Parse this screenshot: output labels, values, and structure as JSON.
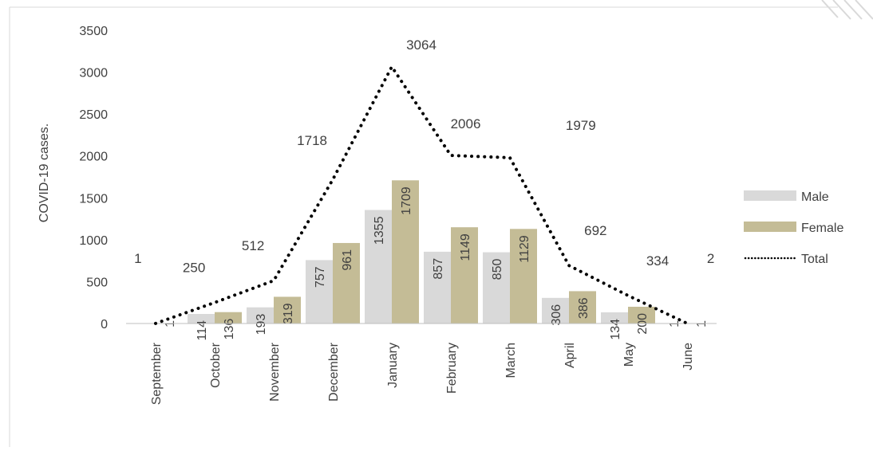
{
  "chart_data": {
    "type": "bar",
    "categories": [
      "September",
      "October",
      "November",
      "December",
      "January",
      "February",
      "March",
      "April",
      "May",
      "June"
    ],
    "series": [
      {
        "name": "Male",
        "type": "bar",
        "values": [
          0,
          114,
          193,
          757,
          1355,
          857,
          850,
          306,
          134,
          1
        ],
        "labels": [
          "",
          "114",
          "193",
          "757",
          "1355",
          "857",
          "850",
          "306",
          "134",
          "1"
        ],
        "color": "#d9d9d9"
      },
      {
        "name": "Female",
        "type": "bar",
        "values": [
          1,
          136,
          319,
          961,
          1709,
          1149,
          1129,
          386,
          200,
          1
        ],
        "labels": [
          "1",
          "136",
          "319",
          "961",
          "1709",
          "1149",
          "1129",
          "386",
          "200",
          "1"
        ],
        "color": "#c4bc96"
      },
      {
        "name": "Total",
        "type": "line",
        "style": "dotted",
        "values": [
          1,
          250,
          512,
          1718,
          3064,
          2006,
          1979,
          692,
          334,
          2
        ],
        "labels": [
          "1",
          "250",
          "512",
          "1718",
          "3064",
          "2006",
          "1979",
          "692",
          "334",
          "2"
        ],
        "color": "#000000"
      }
    ],
    "ylabel": "COVID-19 cases.",
    "xlabel": "",
    "ylim": [
      0,
      3500
    ],
    "yticks": [
      "0",
      "500",
      "1000",
      "1500",
      "2000",
      "2500",
      "3000",
      "3500"
    ],
    "grid": false,
    "legend": "right"
  }
}
